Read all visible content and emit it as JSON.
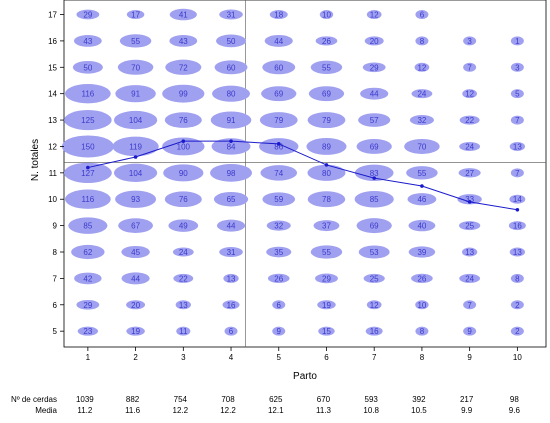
{
  "chart_data": {
    "type": "scatter",
    "xlabel": "Parto",
    "ylabel": "N. totales",
    "x_ticks": [
      1,
      2,
      3,
      4,
      5,
      6,
      7,
      8,
      9,
      10
    ],
    "y_ticks": [
      5,
      6,
      7,
      8,
      9,
      10,
      11,
      12,
      13,
      14,
      15,
      16,
      17
    ],
    "xlim": [
      0.5,
      10.6
    ],
    "ylim": [
      4.4,
      17.55
    ],
    "reference_lines": {
      "x": 4.3,
      "y": 11.4
    },
    "bubble_color": "#a0a0f0",
    "bubble_label_color": "#3a3acc",
    "line_color": "#1a1acc",
    "grid": false,
    "bubbles": [
      {
        "y": 17,
        "values": [
          29,
          17,
          41,
          31,
          18,
          10,
          12,
          6,
          null,
          null
        ]
      },
      {
        "y": 16,
        "values": [
          43,
          55,
          43,
          50,
          44,
          26,
          20,
          8,
          3,
          1
        ]
      },
      {
        "y": 15,
        "values": [
          50,
          70,
          72,
          60,
          60,
          55,
          29,
          12,
          7,
          3
        ]
      },
      {
        "y": 14,
        "values": [
          116,
          91,
          99,
          80,
          69,
          69,
          44,
          24,
          12,
          5
        ]
      },
      {
        "y": 13,
        "values": [
          125,
          104,
          76,
          91,
          79,
          79,
          57,
          32,
          22,
          7
        ]
      },
      {
        "y": 12,
        "values": [
          150,
          119,
          100,
          84,
          86,
          89,
          69,
          70,
          24,
          13
        ]
      },
      {
        "y": 11,
        "values": [
          127,
          104,
          90,
          98,
          74,
          80,
          83,
          55,
          27,
          7
        ]
      },
      {
        "y": 10,
        "values": [
          116,
          93,
          76,
          65,
          59,
          78,
          85,
          46,
          33,
          14
        ]
      },
      {
        "y": 9,
        "values": [
          85,
          67,
          49,
          44,
          32,
          37,
          69,
          40,
          25,
          16
        ]
      },
      {
        "y": 8,
        "values": [
          62,
          45,
          24,
          31,
          35,
          55,
          53,
          39,
          13,
          13
        ]
      },
      {
        "y": 7,
        "values": [
          42,
          44,
          22,
          13,
          26,
          29,
          25,
          26,
          24,
          8
        ]
      },
      {
        "y": 6,
        "values": [
          29,
          20,
          13,
          16,
          6,
          19,
          12,
          10,
          7,
          2
        ]
      },
      {
        "y": 5,
        "values": [
          23,
          19,
          11,
          6,
          9,
          15,
          16,
          8,
          9,
          2
        ]
      }
    ],
    "mean_line": {
      "x": [
        1,
        2,
        3,
        4,
        5,
        6,
        7,
        8,
        9,
        10
      ],
      "y": [
        11.2,
        11.6,
        12.2,
        12.2,
        12.1,
        11.3,
        10.8,
        10.5,
        9.9,
        9.6
      ]
    },
    "table": {
      "row1_label": "Nº de cerdas",
      "row2_label": "Media",
      "counts": [
        "1039",
        "882",
        "754",
        "708",
        "625",
        "670",
        "593",
        "392",
        "217",
        "98"
      ],
      "means": [
        "11.2",
        "11.6",
        "12.2",
        "12.2",
        "12.1",
        "11.3",
        "10.8",
        "10.5",
        "9.9",
        "9.6"
      ]
    }
  }
}
